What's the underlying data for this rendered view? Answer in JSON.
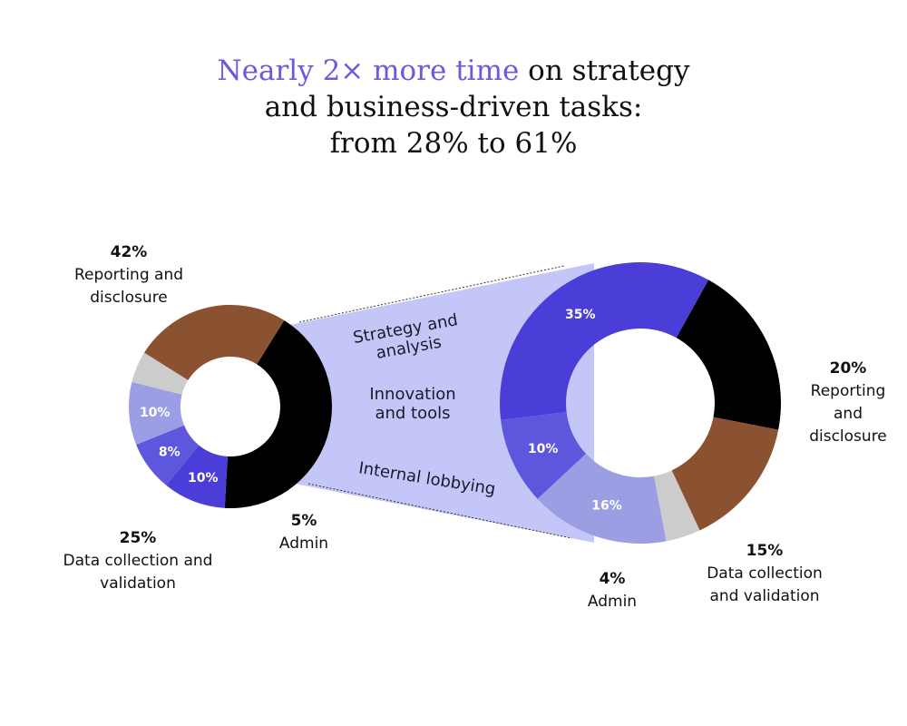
{
  "title": {
    "highlight": "Nearly 2× more time",
    "rest_line1": " on strategy",
    "line2": "and business-driven tasks:",
    "line3": "from 28% to 61%"
  },
  "colors": {
    "reporting": "#000000",
    "data": "#8b5231",
    "admin": "#cccccc",
    "internal": "#9c9ee3",
    "innovation": "#5e57dd",
    "strategy": "#4b3dd8",
    "band": "#c4c6f7",
    "highlight": "#6b5bdc"
  },
  "band_labels": [
    "Strategy and analysis",
    "Innovation and tools",
    "Internal lobbying"
  ],
  "chart_data": [
    {
      "type": "pie",
      "slices": [
        {
          "label": "Reporting and disclosure",
          "value": 42,
          "value_label": "42%",
          "color": "#000000"
        },
        {
          "label": "Strategy and analysis",
          "value": 10,
          "value_label": "10%",
          "color": "#4b3dd8"
        },
        {
          "label": "Innovation and tools",
          "value": 8,
          "value_label": "8%",
          "color": "#5e57dd"
        },
        {
          "label": "Internal lobbying",
          "value": 10,
          "value_label": "10%",
          "color": "#9c9ee3"
        },
        {
          "label": "Admin",
          "value": 5,
          "value_label": "5%",
          "color": "#cccccc"
        },
        {
          "label": "Data collection and validation",
          "value": 25,
          "value_label": "25%",
          "color": "#8b5231"
        }
      ]
    },
    {
      "type": "pie",
      "slices": [
        {
          "label": "Strategy and analysis",
          "value": 35,
          "value_label": "35%",
          "color": "#4b3dd8"
        },
        {
          "label": "Reporting and disclosure",
          "value": 20,
          "value_label": "20%",
          "color": "#000000"
        },
        {
          "label": "Data collection and validation",
          "value": 15,
          "value_label": "15%",
          "color": "#8b5231"
        },
        {
          "label": "Admin",
          "value": 4,
          "value_label": "4%",
          "color": "#cccccc"
        },
        {
          "label": "Internal lobbying",
          "value": 16,
          "value_label": "16%",
          "color": "#9c9ee3"
        },
        {
          "label": "Innovation and tools",
          "value": 10,
          "value_label": "10%",
          "color": "#5e57dd"
        }
      ]
    }
  ],
  "outer_labels": {
    "left": [
      {
        "pct": "42%",
        "lines": [
          "Reporting and",
          "disclosure"
        ]
      },
      {
        "pct": "25%",
        "lines": [
          "Data collection and",
          "validation"
        ]
      },
      {
        "pct": "5%",
        "lines": [
          "Admin"
        ]
      }
    ],
    "right": [
      {
        "pct": "20%",
        "lines": [
          "Reporting",
          "and",
          "disclosure"
        ]
      },
      {
        "pct": "15%",
        "lines": [
          "Data collection",
          "and validation"
        ]
      },
      {
        "pct": "4%",
        "lines": [
          "Admin"
        ]
      }
    ]
  }
}
